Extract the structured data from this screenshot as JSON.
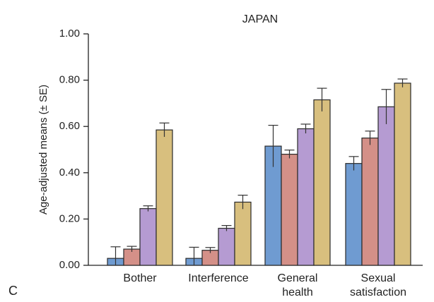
{
  "chart_data": {
    "type": "bar",
    "title": "JAPAN",
    "ylabel": "Age-adjusted means (± SE)",
    "xlabel": "",
    "panel_label": "C",
    "ylim": [
      0,
      1
    ],
    "yticks": [
      "0.00",
      "0.20",
      "0.40",
      "0.60",
      "0.80",
      "1.00"
    ],
    "ytick_values": [
      0,
      0.2,
      0.4,
      0.6,
      0.8,
      1.0
    ],
    "grid": false,
    "legend": "none",
    "categories": [
      [
        "Bother"
      ],
      [
        "Interference"
      ],
      [
        "General",
        "health"
      ],
      [
        "Sexual",
        "satisfaction"
      ]
    ],
    "series_colors": [
      "#6f9bd1",
      "#d49088",
      "#b59bd2",
      "#d8bf7e"
    ],
    "series": [
      {
        "values": [
          0.03,
          0.03,
          0.515,
          0.44
        ],
        "errors": [
          0.05,
          0.048,
          0.09,
          0.03
        ]
      },
      {
        "values": [
          0.07,
          0.065,
          0.48,
          0.55
        ],
        "errors": [
          0.012,
          0.012,
          0.018,
          0.03
        ]
      },
      {
        "values": [
          0.245,
          0.16,
          0.59,
          0.685
        ],
        "errors": [
          0.012,
          0.012,
          0.02,
          0.075
        ]
      },
      {
        "values": [
          0.585,
          0.273,
          0.715,
          0.787
        ],
        "errors": [
          0.03,
          0.03,
          0.05,
          0.018
        ]
      }
    ]
  }
}
